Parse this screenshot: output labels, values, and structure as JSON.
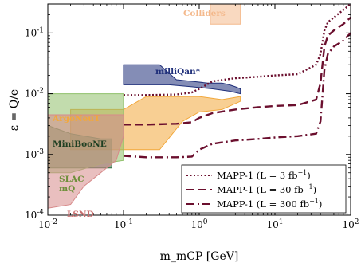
{
  "chart_data": {
    "type": "line",
    "xlabel": "m_mCP [GeV]",
    "ylabel": "ε = Q/e",
    "xlim": [
      0.01,
      100
    ],
    "ylim": [
      0.0001,
      0.3
    ],
    "x_scale": "log",
    "y_scale": "log",
    "x_ticks": [
      0.01,
      0.1,
      1,
      10,
      100
    ],
    "x_tick_labels": [
      "10^-2",
      "10^-1",
      "10^0",
      "10^1",
      "10^2"
    ],
    "y_ticks": [
      0.0001,
      0.001,
      0.01,
      0.1
    ],
    "y_tick_labels": [
      "10^-4",
      "10^-3",
      "10^-2",
      "10^-1"
    ],
    "grid": false,
    "legend_position": "bottom-right",
    "regions": [
      {
        "label": "Colliders",
        "color": "#F4B98C",
        "points": [
          [
            1.4,
            0.3
          ],
          [
            3.5,
            0.3
          ],
          [
            3.5,
            0.14
          ],
          [
            1.4,
            0.14
          ]
        ]
      },
      {
        "label": "milliQan*",
        "color": "#1F2F7A",
        "points": [
          [
            0.1,
            0.03
          ],
          [
            0.3,
            0.03
          ],
          [
            0.5,
            0.017
          ],
          [
            0.8,
            0.016
          ],
          [
            1.3,
            0.015
          ],
          [
            2.0,
            0.015
          ],
          [
            2.5,
            0.014
          ],
          [
            3.0,
            0.013
          ],
          [
            3.5,
            0.012
          ],
          [
            3.5,
            0.01
          ],
          [
            2.5,
            0.011
          ],
          [
            1.5,
            0.012
          ],
          [
            0.8,
            0.013
          ],
          [
            0.4,
            0.014
          ],
          [
            0.1,
            0.014
          ]
        ]
      },
      {
        "label": "ArgoNeuT",
        "color": "#F2A83B",
        "points": [
          [
            0.02,
            0.0055
          ],
          [
            0.1,
            0.0055
          ],
          [
            0.2,
            0.009
          ],
          [
            0.5,
            0.009
          ],
          [
            1.0,
            0.009
          ],
          [
            2.0,
            0.008
          ],
          [
            3.5,
            0.009
          ],
          [
            3.5,
            0.0075
          ],
          [
            2.0,
            0.0055
          ],
          [
            1.0,
            0.005
          ],
          [
            0.6,
            0.0035
          ],
          [
            0.3,
            0.0012
          ],
          [
            0.1,
            0.0012
          ],
          [
            0.02,
            0.0012
          ]
        ]
      },
      {
        "label": "MiniBooNE",
        "color": "#2F6B3E",
        "points": [
          [
            0.01,
            0.003
          ],
          [
            0.015,
            0.0025
          ],
          [
            0.02,
            0.0022
          ],
          [
            0.05,
            0.0018
          ],
          [
            0.07,
            0.0018
          ],
          [
            0.07,
            0.0006
          ],
          [
            0.01,
            0.0006
          ]
        ]
      },
      {
        "label": "SLAC mQ",
        "color": "#8FC06A",
        "points": [
          [
            0.01,
            0.0005
          ],
          [
            0.02,
            0.0005
          ],
          [
            0.05,
            0.0007
          ],
          [
            0.1,
            0.0008
          ],
          [
            0.1,
            0.01
          ],
          [
            0.01,
            0.01
          ]
        ]
      },
      {
        "label": "LSND",
        "color": "#D78A8A",
        "points": [
          [
            0.01,
            0.00013
          ],
          [
            0.02,
            0.00015
          ],
          [
            0.03,
            0.0003
          ],
          [
            0.05,
            0.0005
          ],
          [
            0.08,
            0.0008
          ],
          [
            0.1,
            0.002
          ],
          [
            0.1,
            0.0045
          ],
          [
            0.01,
            0.0045
          ]
        ]
      }
    ],
    "series": [
      {
        "name": "MAPP-1 (L = 3 fb^-1)",
        "style": "dotted",
        "color": "#6B0F2E",
        "x": [
          0.1,
          0.2,
          0.5,
          0.8,
          1.0,
          1.5,
          3,
          6,
          10,
          20,
          35,
          40,
          45,
          50,
          60,
          80,
          100
        ],
        "y": [
          0.0095,
          0.0095,
          0.0097,
          0.0105,
          0.012,
          0.016,
          0.018,
          0.019,
          0.02,
          0.021,
          0.03,
          0.045,
          0.11,
          0.15,
          0.18,
          0.24,
          0.3
        ]
      },
      {
        "name": "MAPP-1 (L = 30 fb^-1)",
        "style": "dashed",
        "color": "#6B0F2E",
        "x": [
          0.1,
          0.2,
          0.5,
          0.8,
          1.0,
          1.5,
          3,
          6,
          10,
          20,
          35,
          40,
          45,
          50,
          60,
          80,
          100
        ],
        "y": [
          0.0031,
          0.0031,
          0.0032,
          0.0034,
          0.004,
          0.0048,
          0.0055,
          0.006,
          0.0063,
          0.0065,
          0.008,
          0.015,
          0.06,
          0.09,
          0.11,
          0.14,
          0.18
        ]
      },
      {
        "name": "MAPP-1 (L = 300 fb^-1)",
        "style": "dashdot",
        "color": "#6B0F2E",
        "x": [
          0.1,
          0.2,
          0.5,
          0.8,
          1.0,
          1.5,
          3,
          6,
          10,
          20,
          35,
          40,
          45,
          50,
          60,
          80,
          100
        ],
        "y": [
          0.00095,
          0.0009,
          0.0009,
          0.00092,
          0.0012,
          0.0015,
          0.0017,
          0.0018,
          0.0019,
          0.002,
          0.0022,
          0.0035,
          0.025,
          0.045,
          0.06,
          0.075,
          0.1
        ]
      }
    ]
  }
}
